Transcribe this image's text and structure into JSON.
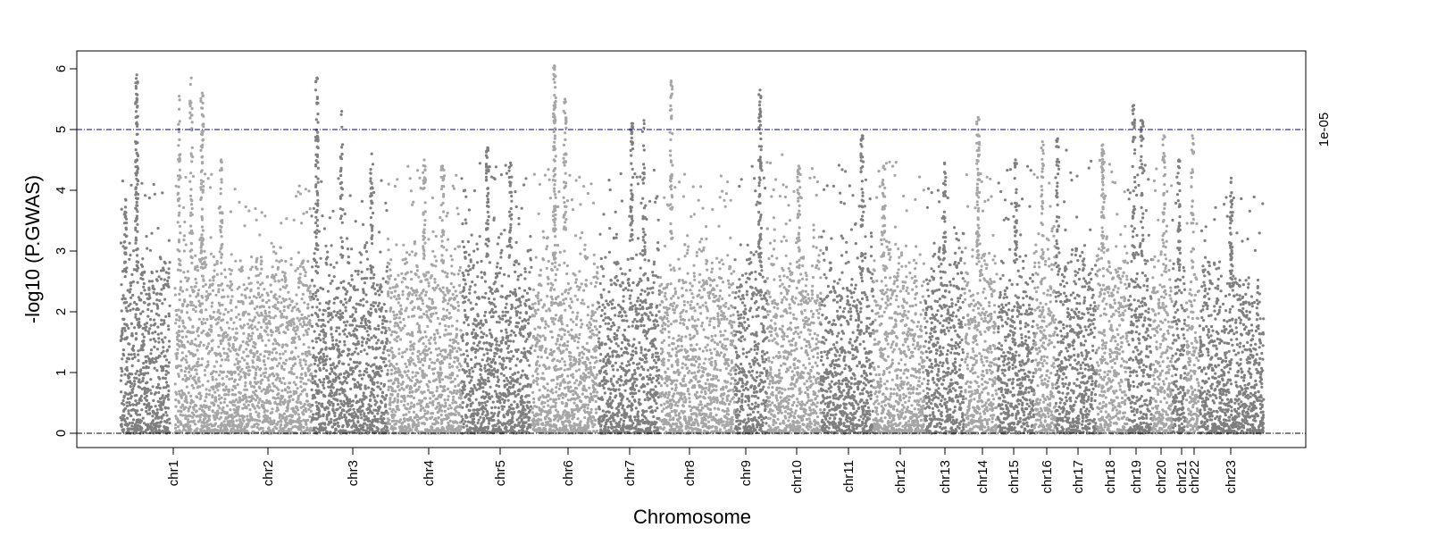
{
  "chart_data": {
    "type": "scatter",
    "subtype": "manhattan",
    "title": "",
    "xlabel": "Chromosome",
    "ylabel": "-log10 (P.GWAS)",
    "ylim": [
      0,
      6.2
    ],
    "yticks": [
      0,
      1,
      2,
      3,
      4,
      5,
      6
    ],
    "grid": false,
    "legend": "none",
    "threshold": {
      "value": 5,
      "label": "1e-05",
      "color": "#00008b"
    },
    "baseline": {
      "value": 0,
      "color": "#000000"
    },
    "colors": {
      "dark": "#7f7f7f",
      "light": "#a6a6a6"
    },
    "chromosomes": [
      {
        "label": "chr1",
        "shade": "dark",
        "peak_max": 5.9,
        "max": 3.3,
        "peaks": [
          {
            "pos": 0.33,
            "height": 5.9,
            "strength": 3.0
          },
          {
            "pos": 0.1,
            "height": 3.85,
            "strength": 1
          }
        ]
      },
      {
        "label": "chr2",
        "shade": "light",
        "peak_max": 5.85,
        "max": 3.4,
        "peaks": [
          {
            "pos": 0.03,
            "height": 5.55,
            "strength": 1.2
          },
          {
            "pos": 0.12,
            "height": 5.85,
            "strength": 1.3
          },
          {
            "pos": 0.2,
            "height": 5.6,
            "strength": 2.2
          },
          {
            "pos": 0.34,
            "height": 4.5,
            "strength": 1
          }
        ]
      },
      {
        "label": "chr3",
        "shade": "dark",
        "peak_max": 5.85,
        "max": 3.3,
        "peaks": [
          {
            "pos": 0.07,
            "height": 5.85,
            "strength": 2
          },
          {
            "pos": 0.4,
            "height": 5.3,
            "strength": 1
          },
          {
            "pos": 0.8,
            "height": 4.6,
            "strength": 1
          }
        ]
      },
      {
        "label": "chr4",
        "shade": "light",
        "peak_max": 4.5,
        "max": 3.5,
        "peaks": [
          {
            "pos": 0.5,
            "height": 4.5,
            "strength": 1
          },
          {
            "pos": 0.75,
            "height": 4.4,
            "strength": 1
          }
        ]
      },
      {
        "label": "chr5",
        "shade": "dark",
        "peak_max": 4.7,
        "max": 3.6,
        "peaks": [
          {
            "pos": 0.37,
            "height": 4.7,
            "strength": 1.5
          },
          {
            "pos": 0.7,
            "height": 4.45,
            "strength": 1
          }
        ]
      },
      {
        "label": "chr6",
        "shade": "light",
        "peak_max": 6.05,
        "max": 3.5,
        "peaks": [
          {
            "pos": 0.34,
            "height": 6.05,
            "strength": 3.0
          },
          {
            "pos": 0.5,
            "height": 5.5,
            "strength": 1.5
          }
        ]
      },
      {
        "label": "chr7",
        "shade": "dark",
        "peak_max": 5.15,
        "max": 3.5,
        "peaks": [
          {
            "pos": 0.55,
            "height": 5.1,
            "strength": 1.5
          },
          {
            "pos": 0.75,
            "height": 5.15,
            "strength": 1
          }
        ]
      },
      {
        "label": "chr8",
        "shade": "light",
        "peak_max": 5.8,
        "max": 3.4,
        "peaks": [
          {
            "pos": 0.15,
            "height": 5.8,
            "strength": 1.5
          }
        ]
      },
      {
        "label": "chr9",
        "shade": "dark",
        "peak_max": 5.65,
        "max": 3.5,
        "peaks": [
          {
            "pos": 0.8,
            "height": 5.65,
            "strength": 2.2
          }
        ]
      },
      {
        "label": "chr10",
        "shade": "light",
        "peak_max": 4.4,
        "max": 3.7,
        "peaks": [
          {
            "pos": 0.6,
            "height": 4.4,
            "strength": 1
          }
        ]
      },
      {
        "label": "chr11",
        "shade": "dark",
        "peak_max": 4.9,
        "max": 3.6,
        "peaks": [
          {
            "pos": 0.8,
            "height": 4.9,
            "strength": 1.2
          }
        ]
      },
      {
        "label": "chr12",
        "shade": "light",
        "peak_max": 4.4,
        "max": 3.6,
        "peaks": [
          {
            "pos": 0.2,
            "height": 4.4,
            "strength": 1
          }
        ]
      },
      {
        "label": "chr13",
        "shade": "dark",
        "peak_max": 4.45,
        "max": 3.7,
        "peaks": [
          {
            "pos": 0.5,
            "height": 4.45,
            "strength": 1
          }
        ]
      },
      {
        "label": "chr14",
        "shade": "light",
        "peak_max": 5.2,
        "max": 3.6,
        "peaks": [
          {
            "pos": 0.42,
            "height": 5.2,
            "strength": 2.2
          }
        ]
      },
      {
        "label": "chr15",
        "shade": "dark",
        "peak_max": 4.5,
        "max": 3.5,
        "peaks": [
          {
            "pos": 0.5,
            "height": 4.5,
            "strength": 1
          }
        ]
      },
      {
        "label": "chr16",
        "shade": "light",
        "peak_max": 4.8,
        "max": 3.6,
        "peaks": [
          {
            "pos": 0.4,
            "height": 4.8,
            "strength": 1
          }
        ]
      },
      {
        "label": "chr17",
        "shade": "dark",
        "peak_max": 4.85,
        "max": 3.8,
        "peaks": [
          {
            "pos": 0.05,
            "height": 4.85,
            "strength": 1
          }
        ]
      },
      {
        "label": "chr18",
        "shade": "light",
        "peak_max": 4.75,
        "max": 3.6,
        "peaks": [
          {
            "pos": 0.2,
            "height": 4.75,
            "strength": 1.6
          }
        ]
      },
      {
        "label": "chr19",
        "shade": "dark",
        "peak_max": 5.4,
        "max": 3.6,
        "peaks": [
          {
            "pos": 0.25,
            "height": 5.4,
            "strength": 1.2
          },
          {
            "pos": 0.6,
            "height": 5.15,
            "strength": 1
          }
        ]
      },
      {
        "label": "chr20",
        "shade": "light",
        "peak_max": 4.9,
        "max": 3.6,
        "peaks": [
          {
            "pos": 0.6,
            "height": 4.9,
            "strength": 1
          }
        ]
      },
      {
        "label": "chr21",
        "shade": "dark",
        "peak_max": 4.5,
        "max": 3.4,
        "peaks": [
          {
            "pos": 0.5,
            "height": 4.5,
            "strength": 1
          }
        ]
      },
      {
        "label": "chr22",
        "shade": "light",
        "peak_max": 4.9,
        "max": 3.4,
        "peaks": [
          {
            "pos": 0.5,
            "height": 4.9,
            "strength": 1
          }
        ]
      },
      {
        "label": "chr23",
        "shade": "dark",
        "peak_max": 4.2,
        "max": 3.0,
        "peaks": [
          {
            "pos": 0.5,
            "height": 4.2,
            "strength": 1.5
          }
        ]
      }
    ]
  }
}
